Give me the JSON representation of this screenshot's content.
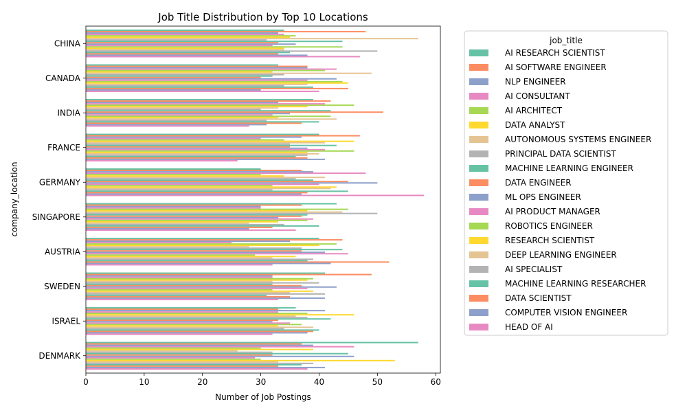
{
  "chart_data": {
    "type": "bar",
    "orientation": "horizontal",
    "title": "Job Title Distribution by Top 10 Locations",
    "xlabel": "Number of Job Postings",
    "ylabel": "company_location",
    "xlim": [
      0,
      60.8
    ],
    "xticks": [
      "0",
      "10",
      "20",
      "30",
      "40",
      "50",
      "60"
    ],
    "grid": false,
    "legend_title": "job_title",
    "legend_position": "right",
    "categories": [
      "CHINA",
      "CANADA",
      "INDIA",
      "FRANCE",
      "GERMANY",
      "SINGAPORE",
      "AUSTRIA",
      "SWEDEN",
      "ISRAEL",
      "DENMARK"
    ],
    "palette": [
      "#66c2a5",
      "#fc8d62",
      "#8da0cb",
      "#e78ac3",
      "#a6d854",
      "#ffd92f",
      "#e5c494",
      "#b3b3b3"
    ],
    "series": [
      {
        "name": "AI RESEARCH SCIENTIST",
        "values": [
          34,
          33,
          39,
          40,
          30,
          43,
          40,
          41,
          36,
          57
        ]
      },
      {
        "name": "AI SOFTWARE ENGINEER",
        "values": [
          48,
          38,
          42,
          47,
          37,
          37,
          44,
          49,
          33,
          37
        ]
      },
      {
        "name": "NLP ENGINEER",
        "values": [
          33,
          38,
          33,
          37,
          39,
          30,
          35,
          32,
          41,
          39
        ]
      },
      {
        "name": "AI CONSULTANT",
        "values": [
          34,
          43,
          41,
          30,
          48,
          30,
          25,
          32,
          33,
          46
        ]
      },
      {
        "name": "AI ARCHITECT",
        "values": [
          36,
          41,
          46,
          34,
          30,
          45,
          43,
          39,
          38,
          30
        ]
      },
      {
        "name": "DATA ANALYST",
        "values": [
          35,
          32,
          38,
          46,
          34,
          38,
          40,
          38,
          46,
          39
        ]
      },
      {
        "name": "AUTONOMOUS SYSTEMS ENGINEER",
        "values": [
          57,
          49,
          33,
          41,
          41,
          44,
          28,
          32,
          36,
          26
        ]
      },
      {
        "name": "PRINCIPAL DATA SCIENTIST",
        "values": [
          31,
          34,
          30,
          35,
          36,
          50,
          37,
          40,
          38,
          32
        ]
      },
      {
        "name": "MACHINE LEARNING ENGINEER",
        "values": [
          44,
          32,
          42,
          43,
          39,
          38,
          44,
          32,
          42,
          45
        ]
      },
      {
        "name": "DATA ENGINEER",
        "values": [
          33,
          30,
          51,
          35,
          45,
          37,
          37,
          37,
          33,
          32
        ]
      },
      {
        "name": "ML OPS ENGINEER",
        "values": [
          36,
          43,
          35,
          38,
          50,
          33,
          41,
          43,
          32,
          46
        ]
      },
      {
        "name": "AI PRODUCT MANAGER",
        "values": [
          32,
          38,
          32,
          41,
          40,
          39,
          45,
          38,
          35,
          29
        ]
      },
      {
        "name": "ROBOTICS ENGINEER",
        "values": [
          44,
          44,
          42,
          46,
          32,
          38,
          29,
          32,
          37,
          30
        ]
      },
      {
        "name": "RESEARCH SCIENTIST",
        "values": [
          34,
          45,
          33,
          38,
          43,
          33,
          36,
          39,
          33,
          53
        ]
      },
      {
        "name": "DEEP LEARNING ENGINEER",
        "values": [
          34,
          38,
          43,
          40,
          42,
          28,
          32,
          35,
          39,
          33
        ]
      },
      {
        "name": "AI SPECIALIST",
        "values": [
          50,
          34,
          31,
          38,
          32,
          34,
          39,
          41,
          34,
          39
        ]
      },
      {
        "name": "MACHINE LEARNING RESEARCHER",
        "values": [
          35,
          39,
          40,
          36,
          45,
          40,
          38,
          31,
          40,
          37
        ]
      },
      {
        "name": "DATA SCIENTIST",
        "values": [
          33,
          45,
          37,
          38,
          38,
          32,
          52,
          35,
          39,
          33
        ]
      },
      {
        "name": "COMPUTER VISION ENGINEER",
        "values": [
          38,
          30,
          31,
          41,
          37,
          28,
          42,
          41,
          38,
          41
        ]
      },
      {
        "name": "HEAD OF AI",
        "values": [
          47,
          40,
          28,
          26,
          58,
          36,
          32,
          33,
          32,
          38
        ]
      }
    ]
  }
}
